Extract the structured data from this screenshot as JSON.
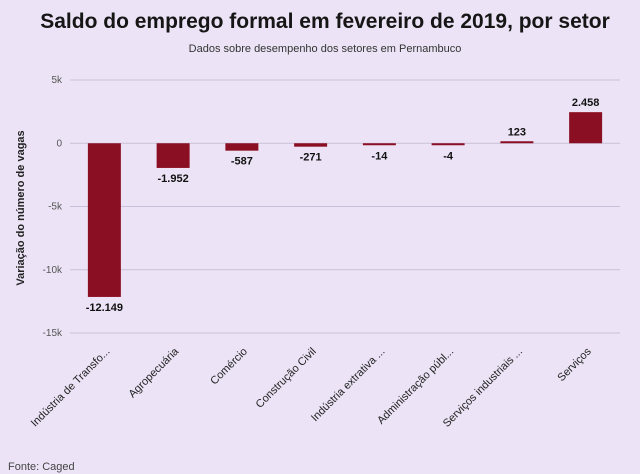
{
  "chart_data": {
    "type": "bar",
    "title": "Saldo do emprego formal em fevereiro de 2019, por setor",
    "subtitle": "Dados sobre desempenho dos setores em Pernambuco",
    "ylabel": "Variação do número de vagas",
    "xlabel": "",
    "ylim": [
      -15000,
      5000
    ],
    "yticks": [
      5000,
      0,
      -5000,
      -10000,
      -15000
    ],
    "ytick_labels": [
      "5k",
      "0",
      "-5k",
      "-10k",
      "-15k"
    ],
    "grid": true,
    "categories": [
      "Indústria de Transfo...",
      "Agropecuária",
      "Comércio",
      "Construção Civil",
      "Indústria extrativa ...",
      "Administração públ...",
      "Serviços industriais ...",
      "Serviços"
    ],
    "values": [
      -12149,
      -1952,
      -587,
      -271,
      -14,
      -4,
      123,
      2458
    ],
    "data_labels": [
      "-12.149",
      "-1.952",
      "-587",
      "-271",
      "-14",
      "-4",
      "123",
      "2.458"
    ],
    "bar_color": "#8b0f22",
    "source": "Fonte: Caged"
  }
}
